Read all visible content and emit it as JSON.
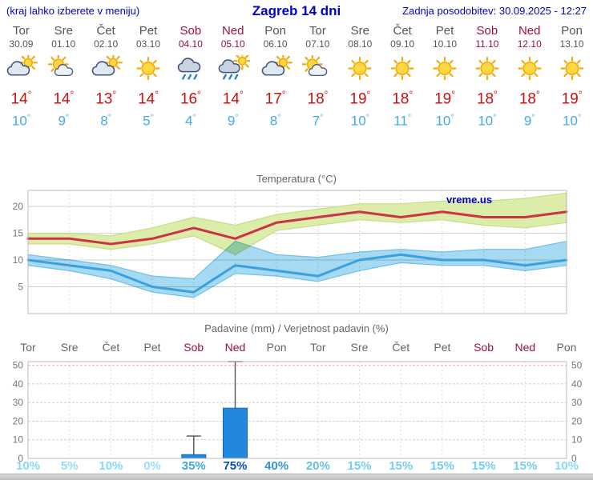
{
  "header": {
    "note": "(kraj lahko izberete v meniju)",
    "title": "Zagreb 14 dni",
    "updated": "Zadnja posodobitev: 30.09.2025 - 12:27"
  },
  "colors": {
    "link_blue": "#0000cc",
    "weekend_red": "#991144",
    "tmax_red": "#cc1111",
    "tmin_blue": "#44a8ee"
  },
  "days": [
    {
      "name": "Tor",
      "date": "30.09",
      "weekend": false,
      "icon": "mostly-cloudy",
      "tmax": "14",
      "tmin": "10",
      "precip_prob": "10%",
      "prob_color": "#86d9f5"
    },
    {
      "name": "Sre",
      "date": "01.10",
      "weekend": false,
      "icon": "partly-cloudy",
      "tmax": "14",
      "tmin": "9",
      "precip_prob": "5%",
      "prob_color": "#90def7"
    },
    {
      "name": "Čet",
      "date": "02.10",
      "weekend": false,
      "icon": "mostly-cloudy",
      "tmax": "13",
      "tmin": "8",
      "precip_prob": "10%",
      "prob_color": "#86d9f5"
    },
    {
      "name": "Pet",
      "date": "03.10",
      "weekend": false,
      "icon": "sunny",
      "tmax": "14",
      "tmin": "5",
      "precip_prob": "0%",
      "prob_color": "#98e2f8"
    },
    {
      "name": "Sob",
      "date": "04.10",
      "weekend": true,
      "icon": "rain",
      "tmax": "16",
      "tmin": "4",
      "precip_prob": "35%",
      "prob_color": "#3fa7df"
    },
    {
      "name": "Ned",
      "date": "05.10",
      "weekend": true,
      "icon": "rain-sun",
      "tmax": "14",
      "tmin": "9",
      "precip_prob": "75%",
      "prob_color": "#0a50b4"
    },
    {
      "name": "Pon",
      "date": "06.10",
      "weekend": false,
      "icon": "mostly-cloudy",
      "tmax": "17",
      "tmin": "8",
      "precip_prob": "40%",
      "prob_color": "#2f97d4"
    },
    {
      "name": "Tor",
      "date": "07.10",
      "weekend": false,
      "icon": "partly-cloudy",
      "tmax": "18",
      "tmin": "7",
      "precip_prob": "20%",
      "prob_color": "#63c2ea"
    },
    {
      "name": "Sre",
      "date": "08.10",
      "weekend": false,
      "icon": "sunny",
      "tmax": "19",
      "tmin": "10",
      "precip_prob": "15%",
      "prob_color": "#74cdef"
    },
    {
      "name": "Čet",
      "date": "09.10",
      "weekend": false,
      "icon": "sunny",
      "tmax": "18",
      "tmin": "11",
      "precip_prob": "15%",
      "prob_color": "#74cdef"
    },
    {
      "name": "Pet",
      "date": "10.10",
      "weekend": false,
      "icon": "sunny",
      "tmax": "19",
      "tmin": "10",
      "precip_prob": "15%",
      "prob_color": "#74cdef"
    },
    {
      "name": "Sob",
      "date": "11.10",
      "weekend": true,
      "icon": "sunny",
      "tmax": "18",
      "tmin": "10",
      "precip_prob": "15%",
      "prob_color": "#74cdef"
    },
    {
      "name": "Ned",
      "date": "12.10",
      "weekend": true,
      "icon": "sunny",
      "tmax": "18",
      "tmin": "9",
      "precip_prob": "15%",
      "prob_color": "#74cdef"
    },
    {
      "name": "Pon",
      "date": "13.10",
      "weekend": false,
      "icon": "sunny",
      "tmax": "19",
      "tmin": "10",
      "precip_prob": "10%",
      "prob_color": "#86d9f5"
    }
  ],
  "chart_data": [
    {
      "type": "area",
      "title": "Temperatura (°C)",
      "watermark": "vreme.us",
      "categories": [
        "Tor 30.09",
        "Sre 01.10",
        "Čet 02.10",
        "Pet 03.10",
        "Sob 04.10",
        "Ned 05.10",
        "Pon 06.10",
        "Tor 07.10",
        "Sre 08.10",
        "Čet 09.10",
        "Pet 10.10",
        "Sob 11.10",
        "Ned 12.10",
        "Pon 13.10"
      ],
      "ylim": [
        0,
        23
      ],
      "yticks": [
        5,
        10,
        15,
        20
      ],
      "grid": true,
      "legend_position": "none",
      "series": [
        {
          "name": "max-temp",
          "color": "#cc3344",
          "values": [
            14,
            14,
            13,
            14,
            16,
            14,
            17,
            18,
            19,
            18,
            19,
            18,
            18,
            19
          ]
        },
        {
          "name": "min-temp",
          "color": "#3aa0e0",
          "values": [
            10,
            9,
            8,
            5,
            4,
            9,
            8,
            7,
            10,
            11,
            10,
            10,
            9,
            10
          ]
        }
      ],
      "bands": [
        {
          "name": "max-range",
          "color": "#dcedaa",
          "edge": "#c6dd88",
          "upper": [
            15,
            15,
            14.5,
            16,
            18,
            16.5,
            18.5,
            19.5,
            20.5,
            20.5,
            21,
            21,
            21.5,
            22.5
          ],
          "lower": [
            13,
            13,
            12,
            13,
            14.5,
            11,
            15.5,
            16.5,
            17.5,
            17,
            17.5,
            16.5,
            16,
            17
          ]
        },
        {
          "name": "min-range",
          "color": "#a6d9f2",
          "edge": "#6fc0e8",
          "upper": [
            11,
            10,
            9,
            7,
            6.5,
            13.5,
            11,
            10.5,
            11.5,
            12,
            11.5,
            12,
            12,
            13.5
          ],
          "lower": [
            9,
            8,
            6.5,
            4,
            3,
            7.5,
            7,
            6,
            8,
            9.5,
            9,
            9,
            8,
            9
          ]
        }
      ]
    },
    {
      "type": "bar",
      "title": "Padavine (mm) / Verjetnost padavin (%)",
      "categories": [
        "Tor",
        "Sre",
        "Čet",
        "Pet",
        "Sob",
        "Ned",
        "Pon",
        "Tor",
        "Sre",
        "Čet",
        "Pet",
        "Sob",
        "Ned",
        "Pon"
      ],
      "weekend_flags": [
        false,
        false,
        false,
        false,
        true,
        true,
        false,
        false,
        false,
        false,
        false,
        true,
        true,
        false
      ],
      "values": [
        0,
        0,
        0,
        0,
        2,
        27,
        0,
        0,
        0,
        0,
        0,
        0,
        0,
        0
      ],
      "whisker_max": [
        null,
        null,
        null,
        null,
        12,
        52,
        null,
        null,
        null,
        null,
        null,
        null,
        null,
        null
      ],
      "probabilities": [
        "10%",
        "5%",
        "10%",
        "0%",
        "35%",
        "75%",
        "40%",
        "20%",
        "15%",
        "15%",
        "15%",
        "15%",
        "15%",
        "10%"
      ],
      "ylim": [
        0,
        52
      ],
      "yticks": [
        0,
        10,
        20,
        30,
        40,
        50
      ],
      "bar_color": "#2288dd",
      "bar_edge": "#1166bb",
      "grid": true,
      "legend_position": "none"
    }
  ]
}
